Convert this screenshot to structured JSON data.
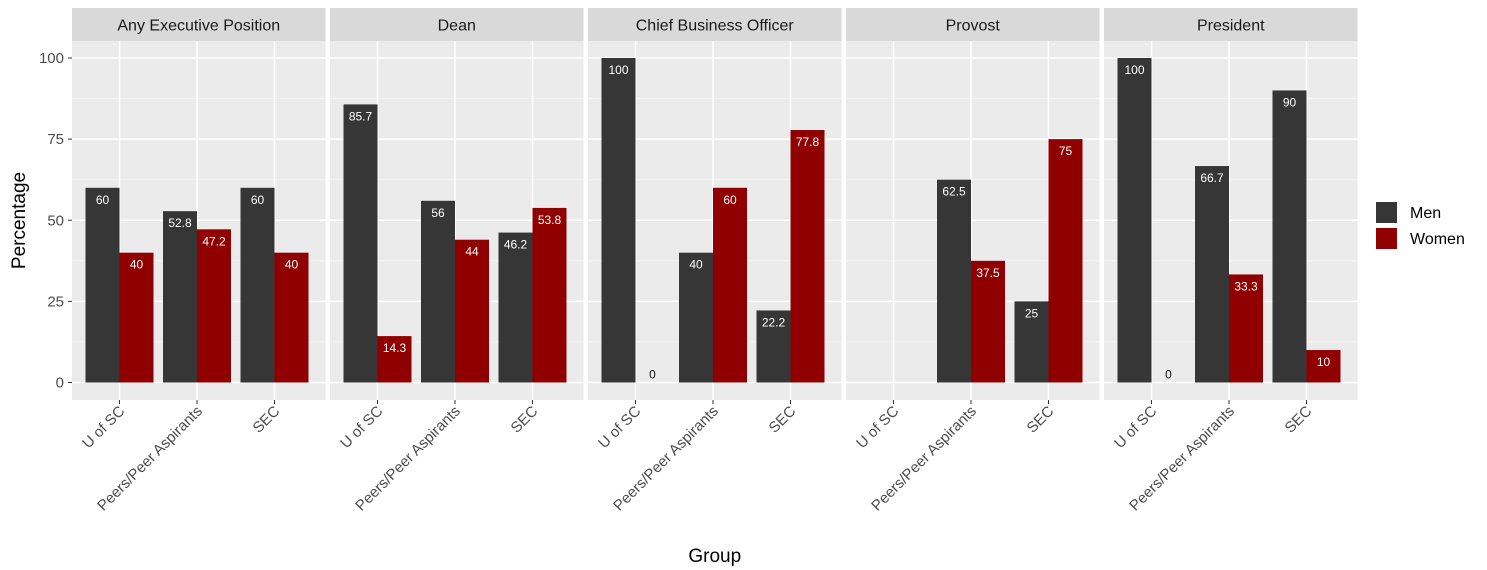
{
  "chart_data": {
    "type": "bar",
    "xlabel": "Group",
    "ylabel": "Percentage",
    "ylim": [
      0,
      100
    ],
    "yticks": [
      "0",
      "25",
      "50",
      "75",
      "100"
    ],
    "categories": [
      "U of SC",
      "Peers/Peer Aspirants",
      "SEC"
    ],
    "legend": {
      "position": "right",
      "entries": [
        "Men",
        "Women"
      ]
    },
    "colors": {
      "Men": "#363636",
      "Women": "#900000"
    },
    "grid": true,
    "facets": [
      {
        "title": "Any Executive Position",
        "series": [
          {
            "name": "Men",
            "values": [
              60,
              52.8,
              60
            ],
            "labels": [
              "60",
              "52.8",
              "60"
            ]
          },
          {
            "name": "Women",
            "values": [
              40,
              47.2,
              40
            ],
            "labels": [
              "40",
              "47.2",
              "40"
            ]
          }
        ]
      },
      {
        "title": "Dean",
        "series": [
          {
            "name": "Men",
            "values": [
              85.7,
              56,
              46.2
            ],
            "labels": [
              "85.7",
              "56",
              "46.2"
            ]
          },
          {
            "name": "Women",
            "values": [
              14.3,
              44,
              53.8
            ],
            "labels": [
              "14.3",
              "44",
              "53.8"
            ]
          }
        ]
      },
      {
        "title": "Chief Business Officer",
        "series": [
          {
            "name": "Men",
            "values": [
              100,
              40,
              22.2
            ],
            "labels": [
              "100",
              "40",
              "22.2"
            ]
          },
          {
            "name": "Women",
            "values": [
              0,
              60,
              77.8
            ],
            "labels": [
              "0",
              "60",
              "77.8"
            ]
          }
        ]
      },
      {
        "title": "Provost",
        "series": [
          {
            "name": "Men",
            "values": [
              null,
              62.5,
              25
            ],
            "labels": [
              null,
              "62.5",
              "25"
            ]
          },
          {
            "name": "Women",
            "values": [
              null,
              37.5,
              75
            ],
            "labels": [
              null,
              "37.5",
              "75"
            ]
          }
        ]
      },
      {
        "title": "President",
        "series": [
          {
            "name": "Men",
            "values": [
              100,
              66.7,
              90
            ],
            "labels": [
              "100",
              "66.7",
              "90"
            ]
          },
          {
            "name": "Women",
            "values": [
              0,
              33.3,
              10
            ],
            "labels": [
              "0",
              "33.3",
              "10"
            ]
          }
        ]
      }
    ]
  }
}
